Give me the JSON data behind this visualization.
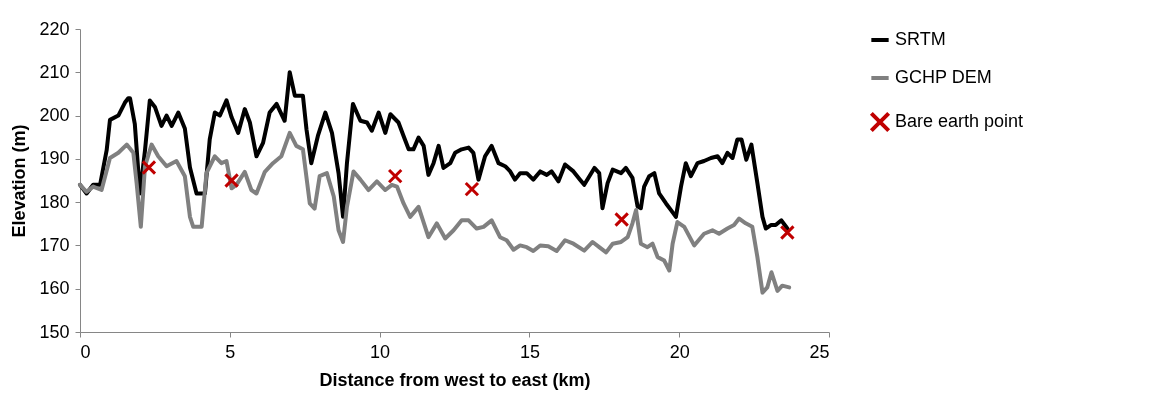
{
  "chart_data": {
    "type": "line",
    "xlabel": "Distance from west to east (km)",
    "ylabel": "Elevation (m)",
    "xlim": [
      0,
      25
    ],
    "xticks": [
      0,
      5,
      10,
      15,
      20,
      25
    ],
    "ylim": [
      150,
      220
    ],
    "yticks": [
      150,
      160,
      170,
      180,
      190,
      200,
      210,
      220
    ],
    "grid": false,
    "legend": "right",
    "series": [
      {
        "name": "SRTM",
        "color": "#000000",
        "x": [
          0,
          0.22,
          0.44,
          0.67,
          0.89,
          1.0,
          1.28,
          1.5,
          1.61,
          1.67,
          1.83,
          2.0,
          2.17,
          2.33,
          2.5,
          2.72,
          2.89,
          3.06,
          3.28,
          3.5,
          3.67,
          3.89,
          4.17,
          4.33,
          4.5,
          4.67,
          4.89,
          5.06,
          5.28,
          5.5,
          5.67,
          5.89,
          6.11,
          6.33,
          6.56,
          6.83,
          7.0,
          7.17,
          7.44,
          7.56,
          7.72,
          7.94,
          8.19,
          8.41,
          8.63,
          8.78,
          8.91,
          9.11,
          9.36,
          9.58,
          9.74,
          9.97,
          10.19,
          10.36,
          10.63,
          10.8,
          10.97,
          11.13,
          11.3,
          11.47,
          11.63,
          11.8,
          11.97,
          12.13,
          12.36,
          12.52,
          12.74,
          12.97,
          13.13,
          13.3,
          13.52,
          13.74,
          13.97,
          14.19,
          14.36,
          14.52,
          14.69,
          14.91,
          15.13,
          15.36,
          15.58,
          15.74,
          15.97,
          16.19,
          16.47,
          16.69,
          16.83,
          17.17,
          17.33,
          17.44,
          17.61,
          17.78,
          18.06,
          18.22,
          18.44,
          18.61,
          18.72,
          18.83,
          19.0,
          19.17,
          19.33,
          19.56,
          19.72,
          19.89,
          20.06,
          20.22,
          20.39,
          20.61,
          20.83,
          21.06,
          21.28,
          21.44,
          21.61,
          21.78,
          21.94,
          22.08,
          22.24,
          22.41,
          22.61,
          22.78,
          22.89,
          23.06,
          23.22,
          23.41,
          23.61
        ],
        "values": [
          184,
          182,
          184,
          184,
          192,
          199,
          200,
          203,
          204,
          204,
          198,
          182,
          192,
          203.5,
          202,
          197.6,
          200,
          197.6,
          200.7,
          197,
          188,
          182,
          182,
          194.5,
          200.7,
          200,
          203.5,
          199.6,
          196,
          201.5,
          198.4,
          190.6,
          193.7,
          200.7,
          202.7,
          198.8,
          210,
          204.6,
          204.6,
          196.8,
          189,
          195.3,
          200.7,
          196,
          186.7,
          176.6,
          189,
          202.7,
          198.8,
          198.4,
          196.5,
          200.7,
          196,
          200.3,
          198.4,
          195.3,
          192.2,
          192.2,
          194.9,
          193,
          186.3,
          189,
          193,
          187.9,
          189,
          191.4,
          192.2,
          192.6,
          191.4,
          185.2,
          190.6,
          193,
          189,
          188.3,
          187.1,
          185.2,
          186.7,
          186.7,
          185.2,
          187.1,
          186.3,
          187.1,
          184.8,
          188.7,
          187.1,
          185.2,
          184,
          187.9,
          186.7,
          178.6,
          184.4,
          187.5,
          186.7,
          187.9,
          185.6,
          179,
          178.6,
          183.6,
          186,
          186.7,
          182,
          179.7,
          178.2,
          176.6,
          183.6,
          189,
          186,
          189,
          189.5,
          190.2,
          190.6,
          189,
          191.4,
          190.2,
          194.5,
          194.5,
          189.8,
          193.3,
          184.4,
          176.6,
          173.9,
          174.7,
          174.7,
          175.8,
          173.9
        ]
      },
      {
        "name": "GCHP DEM",
        "color": "#808080",
        "x": [
          0,
          0.22,
          0.44,
          0.72,
          1.0,
          1.28,
          1.56,
          1.78,
          1.89,
          2.03,
          2.17,
          2.39,
          2.61,
          2.89,
          3.22,
          3.5,
          3.67,
          3.78,
          4.06,
          4.22,
          4.5,
          4.72,
          4.89,
          5.06,
          5.22,
          5.5,
          5.72,
          5.89,
          6.17,
          6.44,
          6.72,
          7.0,
          7.22,
          7.44,
          7.67,
          7.83,
          8.0,
          8.24,
          8.47,
          8.63,
          8.78,
          8.91,
          9.13,
          9.36,
          9.63,
          9.91,
          10.19,
          10.41,
          10.58,
          10.8,
          11.02,
          11.3,
          11.63,
          11.91,
          12.19,
          12.47,
          12.74,
          12.97,
          13.24,
          13.47,
          13.74,
          14.02,
          14.24,
          14.47,
          14.69,
          14.91,
          15.13,
          15.36,
          15.63,
          15.91,
          16.19,
          16.47,
          16.83,
          17.11,
          17.33,
          17.56,
          17.78,
          18.06,
          18.28,
          18.44,
          18.56,
          18.72,
          18.94,
          19.11,
          19.28,
          19.5,
          19.67,
          19.78,
          19.94,
          20.17,
          20.5,
          20.83,
          21.11,
          21.33,
          21.61,
          21.83,
          22.0,
          22.22,
          22.44,
          22.61,
          22.78,
          22.94,
          23.08,
          23.28,
          23.44,
          23.67
        ],
        "values": [
          184,
          182.4,
          183.6,
          182.8,
          190.2,
          191.4,
          193.3,
          191.4,
          184.4,
          174.3,
          188.3,
          193.3,
          190.6,
          188.3,
          189.5,
          186,
          176.6,
          174.3,
          174.3,
          186.7,
          190.6,
          189,
          189.5,
          183.2,
          184,
          187,
          182.8,
          182,
          187,
          189,
          190.6,
          196,
          193,
          192.2,
          179.7,
          178.5,
          186,
          186.7,
          181.3,
          173.5,
          170.8,
          178.9,
          187.1,
          185.2,
          182.8,
          184.8,
          182.8,
          184,
          183.6,
          179.7,
          176.6,
          178.9,
          171.9,
          175.1,
          171.6,
          173.5,
          175.8,
          175.8,
          173.9,
          174.3,
          175.8,
          171.9,
          171.2,
          169,
          170,
          169.6,
          168.7,
          170,
          169.8,
          168.7,
          171.2,
          170.4,
          168.8,
          170.8,
          169.6,
          168.4,
          170.4,
          170.8,
          171.9,
          175.1,
          178.2,
          170.4,
          169.6,
          170.4,
          167.3,
          166.5,
          164.2,
          170.4,
          175.4,
          174.3,
          170,
          172.7,
          173.5,
          172.7,
          173.9,
          174.7,
          176.2,
          175.1,
          174.3,
          167.3,
          159.1,
          160.3,
          163.8,
          159.5,
          160.7,
          160.3
        ]
      },
      {
        "name": "Bare earth point",
        "type": "scatter",
        "marker": "cross",
        "color": "#c00000",
        "x": [
          2.3,
          5.06,
          10.52,
          13.08,
          18.08,
          23.61
        ],
        "values": [
          188,
          185,
          186,
          183,
          176,
          173
        ]
      }
    ]
  }
}
